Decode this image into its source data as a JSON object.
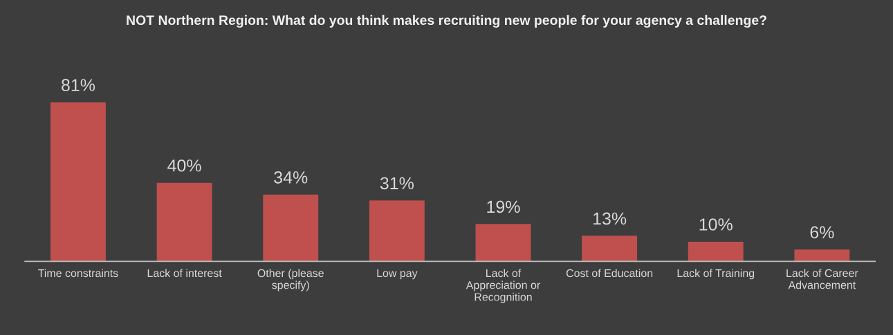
{
  "chart_data": {
    "type": "bar",
    "title": "NOT Northern Region: What do you think makes recruiting new people for your agency a challenge?",
    "categories": [
      "Time constraints",
      "Lack of interest",
      "Other (please\nspecify)",
      "Low pay",
      "Lack of\nAppreciation or\nRecognition",
      "Cost of Education",
      "Lack of Training",
      "Lack of Career\nAdvancement"
    ],
    "values": [
      81,
      40,
      34,
      31,
      19,
      13,
      10,
      6
    ],
    "value_labels": [
      "81%",
      "40%",
      "34%",
      "31%",
      "19%",
      "13%",
      "10%",
      "6%"
    ],
    "color": "#c0504d"
  }
}
